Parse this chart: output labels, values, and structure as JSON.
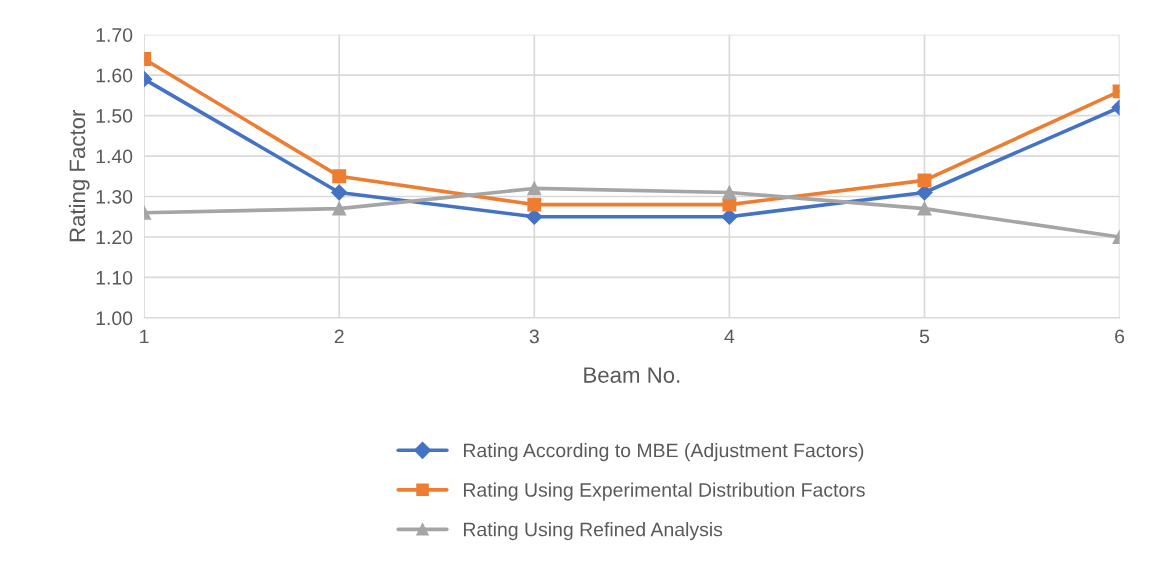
{
  "chart_data": {
    "type": "line",
    "xlabel": "Beam No.",
    "ylabel": "Rating Factor",
    "x": [
      1,
      2,
      3,
      4,
      5,
      6
    ],
    "series": [
      {
        "name": "Rating According to MBE (Adjustment Factors)",
        "color": "#4472c4",
        "marker": "diamond",
        "values": [
          1.59,
          1.31,
          1.25,
          1.25,
          1.31,
          1.52
        ]
      },
      {
        "name": "Rating Using Experimental Distribution Factors",
        "color": "#ed7d31",
        "marker": "square",
        "values": [
          1.64,
          1.35,
          1.28,
          1.28,
          1.34,
          1.56
        ]
      },
      {
        "name": "Rating Using Refined Analysis",
        "color": "#a5a5a5",
        "marker": "triangle",
        "values": [
          1.26,
          1.27,
          1.32,
          1.31,
          1.27,
          1.2
        ]
      }
    ],
    "xlim": [
      1,
      6
    ],
    "xticks": [
      1,
      2,
      3,
      4,
      5,
      6
    ],
    "ylim": [
      1.0,
      1.7
    ],
    "yticks": [
      {
        "value": 1.0,
        "label": "1.00"
      },
      {
        "value": 1.1,
        "label": "1.10"
      },
      {
        "value": 1.2,
        "label": "1.20"
      },
      {
        "value": 1.3,
        "label": "1.30"
      },
      {
        "value": 1.4,
        "label": "1.40"
      },
      {
        "value": 1.5,
        "label": "1.50"
      },
      {
        "value": 1.6,
        "label": "1.60"
      },
      {
        "value": 1.7,
        "label": "1.70"
      }
    ],
    "grid": true,
    "legend": "bottom"
  }
}
